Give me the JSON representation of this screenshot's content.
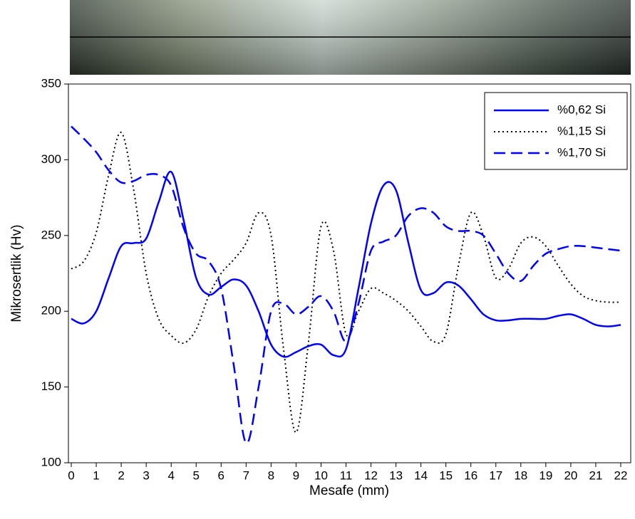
{
  "chart_data": {
    "type": "line",
    "x_label": "Mesafe (mm)",
    "y_label": "Mikrosertlik (Hv)",
    "x": [
      0,
      0.5,
      1,
      1.5,
      2,
      2.5,
      3,
      3.5,
      4,
      4.5,
      5,
      5.5,
      6,
      6.5,
      7,
      7.5,
      8,
      8.5,
      9,
      9.5,
      10,
      10.5,
      11,
      11.5,
      12,
      12.5,
      13,
      13.5,
      14,
      14.5,
      15,
      15.5,
      16,
      16.5,
      17,
      17.5,
      18,
      18.5,
      19,
      19.5,
      20,
      20.5,
      21,
      21.5,
      22
    ],
    "series": [
      {
        "name": "%0,62 Si",
        "color": "#0000ff",
        "style": "solid",
        "values": [
          195,
          192,
          200,
          222,
          243,
          245,
          248,
          272,
          292,
          260,
          222,
          211,
          216,
          221,
          217,
          200,
          178,
          170,
          173,
          177,
          178,
          171,
          175,
          215,
          258,
          283,
          280,
          245,
          214,
          212,
          219,
          217,
          208,
          198,
          194,
          194,
          195,
          195,
          195,
          197,
          198,
          195,
          191,
          190,
          191
        ]
      },
      {
        "name": "%1,15 Si",
        "color": "#000000",
        "style": "dotted",
        "values": [
          228,
          233,
          252,
          290,
          318,
          280,
          225,
          195,
          184,
          179,
          188,
          210,
          225,
          234,
          245,
          265,
          250,
          175,
          120,
          180,
          256,
          240,
          185,
          200,
          215,
          212,
          207,
          200,
          190,
          180,
          185,
          230,
          265,
          250,
          222,
          228,
          245,
          249,
          243,
          230,
          218,
          210,
          207,
          206,
          206
        ]
      },
      {
        "name": "%1,70 Si",
        "color": "#0000ff",
        "style": "dashed",
        "values": [
          322,
          314,
          305,
          293,
          285,
          286,
          290,
          290,
          283,
          255,
          238,
          233,
          215,
          165,
          113,
          150,
          200,
          205,
          198,
          203,
          210,
          200,
          180,
          205,
          240,
          246,
          250,
          263,
          268,
          265,
          256,
          253,
          253,
          250,
          238,
          225,
          220,
          230,
          238,
          241,
          243,
          243,
          242,
          241,
          240
        ]
      }
    ],
    "xlim": [
      0,
      22
    ],
    "xticks": [
      0,
      1,
      2,
      3,
      4,
      5,
      6,
      7,
      8,
      9,
      10,
      11,
      12,
      13,
      14,
      15,
      16,
      17,
      18,
      19,
      20,
      21,
      22
    ],
    "ylim": [
      100,
      350
    ],
    "yticks": [
      100,
      150,
      200,
      250,
      300,
      350
    ],
    "legend": "top-right",
    "grid": false
  }
}
